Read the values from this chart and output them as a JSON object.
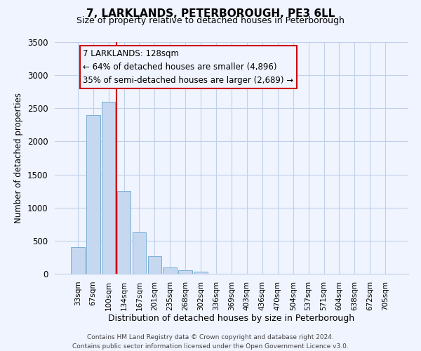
{
  "title": "7, LARKLANDS, PETERBOROUGH, PE3 6LL",
  "subtitle": "Size of property relative to detached houses in Peterborough",
  "xlabel": "Distribution of detached houses by size in Peterborough",
  "ylabel": "Number of detached properties",
  "bar_labels": [
    "33sqm",
    "67sqm",
    "100sqm",
    "134sqm",
    "167sqm",
    "201sqm",
    "235sqm",
    "268sqm",
    "302sqm",
    "336sqm",
    "369sqm",
    "403sqm",
    "436sqm",
    "470sqm",
    "504sqm",
    "537sqm",
    "571sqm",
    "604sqm",
    "638sqm",
    "672sqm",
    "705sqm"
  ],
  "bar_values": [
    400,
    2400,
    2600,
    1250,
    630,
    260,
    100,
    50,
    30,
    0,
    0,
    0,
    0,
    0,
    0,
    0,
    0,
    0,
    0,
    0,
    0
  ],
  "bar_color": "#c5d8f0",
  "bar_edgecolor": "#7aafd4",
  "vline_color": "#cc0000",
  "ylim": [
    0,
    3500
  ],
  "yticks": [
    0,
    500,
    1000,
    1500,
    2000,
    2500,
    3000,
    3500
  ],
  "annotation_text": "7 LARKLANDS: 128sqm\n← 64% of detached houses are smaller (4,896)\n35% of semi-detached houses are larger (2,689) →",
  "annotation_box_edgecolor": "#cc0000",
  "footer_line1": "Contains HM Land Registry data © Crown copyright and database right 2024.",
  "footer_line2": "Contains public sector information licensed under the Open Government Licence v3.0.",
  "bg_color": "#f0f4ff",
  "grid_color": "#c0d0e8"
}
